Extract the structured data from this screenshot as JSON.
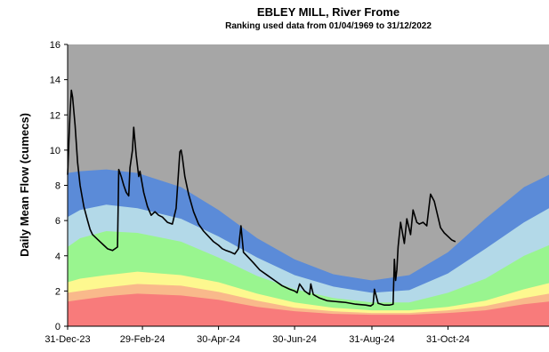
{
  "chart_data": {
    "type": "area",
    "title": "EBLEY MILL, River Frome",
    "subtitle": "Ranking used data from 01/04/1969 to 31/12/2022",
    "xlabel": "",
    "ylabel": "Daily Mean Flow (cumecs)",
    "ylim": [
      0,
      16
    ],
    "yticks": [
      0,
      2,
      4,
      6,
      8,
      10,
      12,
      14,
      16
    ],
    "xlim": [
      "2023-12-31",
      "2025-01-20"
    ],
    "xticks": [
      "31-Dec-23",
      "29-Feb-24",
      "30-Apr-24",
      "30-Jun-24",
      "31-Aug-24",
      "31-Oct-24"
    ],
    "xtick_dates": [
      "2023-12-31",
      "2024-02-29",
      "2024-04-30",
      "2024-06-30",
      "2024-08-31",
      "2024-10-31"
    ],
    "grid": false,
    "colors": {
      "background_band": "#a6a6a6",
      "band_colors": [
        "#f87b7b",
        "#f9b98b",
        "#fdf88f",
        "#99f58f",
        "#b3d9e8",
        "#5b8bd8"
      ],
      "flow_line": "#000000"
    },
    "band_x": [
      "2023-12-31",
      "2024-01-10",
      "2024-01-31",
      "2024-02-25",
      "2024-03-31",
      "2024-04-30",
      "2024-05-31",
      "2024-06-30",
      "2024-07-31",
      "2024-08-31",
      "2024-09-30",
      "2024-10-31",
      "2024-11-30",
      "2024-12-31",
      "2025-01-20"
    ],
    "band_boundaries": [
      [
        1.4,
        1.5,
        1.7,
        1.85,
        1.75,
        1.5,
        1.1,
        0.85,
        0.7,
        0.65,
        0.65,
        0.75,
        0.9,
        1.25,
        1.4
      ],
      [
        1.9,
        2.0,
        2.2,
        2.4,
        2.3,
        1.95,
        1.45,
        1.05,
        0.85,
        0.75,
        0.75,
        0.9,
        1.15,
        1.6,
        1.85
      ],
      [
        2.5,
        2.7,
        2.9,
        3.1,
        2.9,
        2.5,
        1.85,
        1.35,
        1.05,
        0.9,
        0.9,
        1.1,
        1.45,
        2.1,
        2.45
      ],
      [
        4.5,
        5.0,
        5.4,
        5.3,
        4.8,
        3.9,
        2.85,
        2.1,
        1.6,
        1.35,
        1.35,
        1.9,
        2.7,
        4.0,
        4.6
      ],
      [
        6.2,
        6.6,
        6.9,
        6.7,
        6.1,
        5.1,
        3.9,
        2.9,
        2.25,
        1.9,
        2.05,
        3.0,
        4.4,
        5.9,
        6.7
      ],
      [
        8.7,
        8.8,
        8.9,
        8.7,
        7.9,
        6.6,
        5.0,
        3.8,
        2.95,
        2.6,
        2.9,
        4.2,
        6.1,
        7.9,
        8.6
      ]
    ],
    "series": [
      {
        "x": [
          "2023-12-31",
          "2024-01-01",
          "2024-01-02",
          "2024-01-03",
          "2024-01-04",
          "2024-01-06",
          "2024-01-08",
          "2024-01-10",
          "2024-01-13",
          "2024-01-16",
          "2024-01-18",
          "2024-01-20",
          "2024-01-23",
          "2024-01-26",
          "2024-01-29",
          "2024-02-01",
          "2024-02-05",
          "2024-02-09",
          "2024-02-10",
          "2024-02-12",
          "2024-02-14",
          "2024-02-16",
          "2024-02-18",
          "2024-02-19",
          "2024-02-21",
          "2024-02-22",
          "2024-02-24",
          "2024-02-26",
          "2024-02-27",
          "2024-03-01",
          "2024-03-04",
          "2024-03-07",
          "2024-03-10",
          "2024-03-13",
          "2024-03-16",
          "2024-03-20",
          "2024-03-24",
          "2024-03-27",
          "2024-03-30",
          "2024-03-31",
          "2024-04-01",
          "2024-04-03",
          "2024-04-06",
          "2024-04-10",
          "2024-04-14",
          "2024-04-18",
          "2024-04-22",
          "2024-04-26",
          "2024-04-28",
          "2024-04-30",
          "2024-05-03",
          "2024-05-06",
          "2024-05-10",
          "2024-05-13",
          "2024-05-16",
          "2024-05-18",
          "2024-05-20",
          "2024-05-24",
          "2024-05-28",
          "2024-06-02",
          "2024-06-08",
          "2024-06-14",
          "2024-06-20",
          "2024-06-26",
          "2024-06-30",
          "2024-07-02",
          "2024-07-04",
          "2024-07-08",
          "2024-07-12",
          "2024-07-13",
          "2024-07-15",
          "2024-07-20",
          "2024-07-26",
          "2024-08-02",
          "2024-08-10",
          "2024-08-18",
          "2024-08-26",
          "2024-08-30",
          "2024-09-01",
          "2024-09-02",
          "2024-09-05",
          "2024-09-10",
          "2024-09-14",
          "2024-09-17",
          "2024-09-18",
          "2024-09-19",
          "2024-09-20",
          "2024-09-21",
          "2024-09-23",
          "2024-09-26",
          "2024-09-28",
          "2024-10-01",
          "2024-10-03",
          "2024-10-06",
          "2024-10-08",
          "2024-10-11",
          "2024-10-14",
          "2024-10-17",
          "2024-10-20",
          "2024-10-22",
          "2024-10-24",
          "2024-10-25",
          "2024-10-28",
          "2024-10-31",
          "2024-11-03",
          "2024-11-06"
        ],
        "values": [
          8.6,
          10.5,
          12.2,
          13.4,
          13.0,
          11.4,
          9.3,
          8.0,
          6.8,
          6.0,
          5.5,
          5.2,
          5.0,
          4.8,
          4.6,
          4.4,
          4.3,
          4.5,
          8.9,
          8.5,
          8.0,
          7.6,
          7.4,
          9.0,
          10.0,
          11.3,
          9.7,
          8.5,
          8.8,
          7.6,
          6.8,
          6.3,
          6.5,
          6.3,
          6.2,
          5.9,
          5.8,
          6.7,
          9.9,
          10.0,
          9.6,
          8.5,
          7.5,
          6.5,
          5.8,
          5.4,
          5.1,
          4.8,
          4.7,
          4.6,
          4.4,
          4.3,
          4.2,
          4.1,
          4.4,
          5.7,
          4.2,
          3.9,
          3.6,
          3.2,
          2.9,
          2.6,
          2.3,
          2.1,
          2.0,
          1.9,
          2.4,
          2.0,
          1.8,
          2.4,
          1.8,
          1.6,
          1.45,
          1.4,
          1.35,
          1.25,
          1.2,
          1.15,
          1.25,
          2.1,
          1.3,
          1.2,
          1.2,
          1.25,
          3.8,
          2.6,
          3.2,
          4.5,
          5.9,
          4.7,
          6.1,
          5.2,
          6.6,
          5.9,
          5.8,
          5.9,
          5.7,
          7.5,
          7.1,
          6.5,
          5.9,
          5.6,
          5.3,
          5.1,
          4.9,
          4.8
        ]
      }
    ]
  }
}
